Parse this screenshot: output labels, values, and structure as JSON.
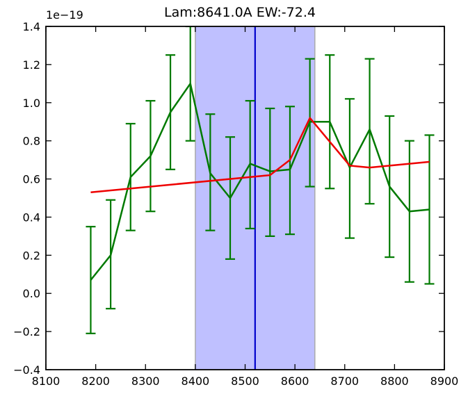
{
  "chart_data": {
    "type": "line",
    "title": "Lam:8641.0A EW:-72.4",
    "y_offset_label": "1e−19",
    "xlabel": "",
    "ylabel": "",
    "xlim": [
      8100,
      8900
    ],
    "ylim": [
      -0.4,
      1.4
    ],
    "x_ticks": [
      8100,
      8200,
      8300,
      8400,
      8500,
      8600,
      8700,
      8800,
      8900
    ],
    "x_tick_labels": [
      "8100",
      "8200",
      "8300",
      "8400",
      "8500",
      "8600",
      "8700",
      "8800",
      "8900"
    ],
    "y_ticks": [
      -0.4,
      -0.2,
      0.0,
      0.2,
      0.4,
      0.6,
      0.8,
      1.0,
      1.2,
      1.4
    ],
    "y_tick_labels": [
      "−0.4",
      "−0.2",
      "0.0",
      "0.2",
      "0.4",
      "0.6",
      "0.8",
      "1.0",
      "1.2",
      "1.4"
    ],
    "grid": false,
    "shaded_region": {
      "x_start": 8400,
      "x_end": 8640,
      "color": "#bfc0ff"
    },
    "vertical_line": {
      "x": 8520,
      "color": "#0000cc"
    },
    "series": [
      {
        "color": "#007a00",
        "x": [
          8190,
          8230,
          8270,
          8310,
          8350,
          8390,
          8430,
          8470,
          8510,
          8550,
          8590,
          8630,
          8670,
          8710,
          8750,
          8790,
          8830,
          8870
        ],
        "y": [
          0.07,
          0.2,
          0.61,
          0.72,
          0.95,
          1.1,
          0.63,
          0.5,
          0.68,
          0.64,
          0.65,
          0.9,
          0.9,
          0.66,
          0.86,
          0.56,
          0.43,
          0.44
        ],
        "err_low": [
          -0.21,
          -0.08,
          0.33,
          0.43,
          0.65,
          0.8,
          0.33,
          0.18,
          0.34,
          0.3,
          0.31,
          0.56,
          0.55,
          0.29,
          0.47,
          0.19,
          0.06,
          0.05
        ],
        "err_high": [
          0.35,
          0.49,
          0.89,
          1.01,
          1.25,
          1.4,
          0.94,
          0.82,
          1.01,
          0.97,
          0.98,
          1.23,
          1.25,
          1.02,
          1.23,
          0.93,
          0.8,
          0.83
        ]
      },
      {
        "color": "#ee0000",
        "x": [
          8190,
          8550,
          8590,
          8630,
          8710,
          8750,
          8870
        ],
        "y": [
          0.53,
          0.62,
          0.7,
          0.92,
          0.67,
          0.66,
          0.69
        ]
      }
    ]
  }
}
